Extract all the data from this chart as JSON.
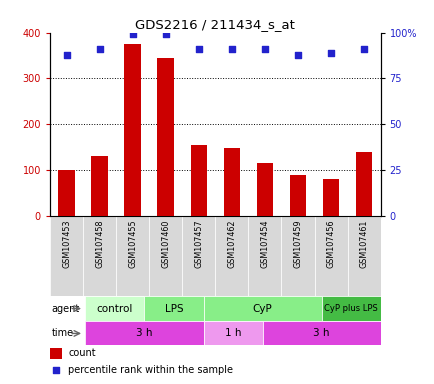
{
  "title": "GDS2216 / 211434_s_at",
  "samples": [
    "GSM107453",
    "GSM107458",
    "GSM107455",
    "GSM107460",
    "GSM107457",
    "GSM107462",
    "GSM107454",
    "GSM107459",
    "GSM107456",
    "GSM107461"
  ],
  "counts": [
    100,
    130,
    375,
    345,
    155,
    148,
    115,
    88,
    80,
    140
  ],
  "percentile_ranks": [
    88,
    91,
    99,
    99,
    91,
    91,
    91,
    88,
    89,
    91
  ],
  "bar_color": "#cc0000",
  "dot_color": "#2222cc",
  "ylim_left": [
    0,
    400
  ],
  "ylim_right": [
    0,
    100
  ],
  "yticks_left": [
    0,
    100,
    200,
    300,
    400
  ],
  "yticks_right": [
    0,
    25,
    50,
    75,
    100
  ],
  "yticklabels_right": [
    "0",
    "25",
    "50",
    "75",
    "100%"
  ],
  "agent_groups": [
    {
      "label": "control",
      "start": 0,
      "end": 2,
      "color": "#ccffcc"
    },
    {
      "label": "LPS",
      "start": 2,
      "end": 4,
      "color": "#88ee88"
    },
    {
      "label": "CyP",
      "start": 4,
      "end": 8,
      "color": "#88ee88"
    },
    {
      "label": "CyP plus LPS",
      "start": 8,
      "end": 10,
      "color": "#44bb44"
    }
  ],
  "time_groups": [
    {
      "label": "3 h",
      "start": 0,
      "end": 4,
      "color": "#dd44dd"
    },
    {
      "label": "1 h",
      "start": 4,
      "end": 6,
      "color": "#ee99ee"
    },
    {
      "label": "3 h",
      "start": 6,
      "end": 10,
      "color": "#dd44dd"
    }
  ],
  "legend_count_label": "count",
  "legend_pct_label": "percentile rank within the sample",
  "agent_label": "agent",
  "time_label": "time"
}
